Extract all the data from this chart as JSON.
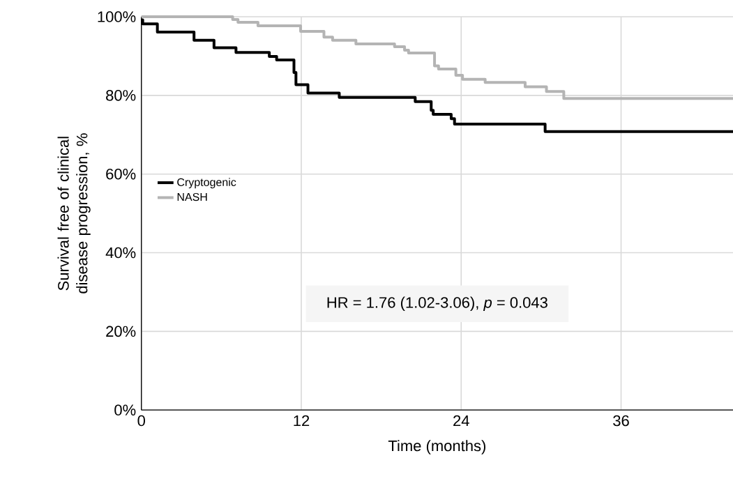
{
  "chart_data": {
    "type": "step",
    "ylabel": "Survival free of clinical disease progression,  %",
    "xlabel": "Time (months)",
    "annotations": [
      "HR =  1.76  (1.02-3.06),   *p* = 0.043"
    ],
    "xlim": [
      0,
      44.4
    ],
    "xticks": [
      0,
      12,
      24,
      36
    ],
    "ylim": [
      0,
      100
    ],
    "yticks": [
      {
        "value": 0,
        "label": "0%"
      },
      {
        "value": 20,
        "label": "20%"
      },
      {
        "value": 40,
        "label": "40%"
      },
      {
        "value": 60,
        "label": "60%"
      },
      {
        "value": 80,
        "label": "80%"
      },
      {
        "value": 100,
        "label": "100%"
      }
    ],
    "grid": true,
    "legend": "center left",
    "marker": "none",
    "line_style": "solid",
    "series": [
      {
        "name": "Cryptogenic",
        "color": "#000000",
        "x": [
          0,
          0.1,
          1.2,
          3.95,
          5.45,
          7.1,
          9.6,
          10.15,
          11.45,
          11.6,
          12.5,
          14.85,
          20.55,
          21.75,
          21.9,
          23.25,
          23.5,
          30.3,
          44.4
        ],
        "values": [
          99.2,
          98.2,
          96.1,
          94.0,
          92.1,
          90.9,
          89.9,
          89.0,
          85.8,
          82.7,
          80.6,
          79.5,
          78.4,
          76.2,
          75.2,
          74.1,
          72.7,
          70.8,
          70.8
        ]
      },
      {
        "name": "NASH",
        "color": "#b4b4b4",
        "x": [
          0,
          6.85,
          7.25,
          8.75,
          11.95,
          13.7,
          14.35,
          16.1,
          19.0,
          19.75,
          20.05,
          22.0,
          22.3,
          23.6,
          24.1,
          25.8,
          28.8,
          30.4,
          31.7,
          44.4
        ],
        "values": [
          100,
          99.3,
          98.6,
          97.7,
          96.3,
          94.8,
          94.0,
          93.1,
          92.4,
          91.5,
          90.8,
          87.5,
          86.7,
          85.1,
          84.1,
          83.3,
          82.2,
          81.0,
          79.2,
          79.2
        ]
      }
    ]
  }
}
